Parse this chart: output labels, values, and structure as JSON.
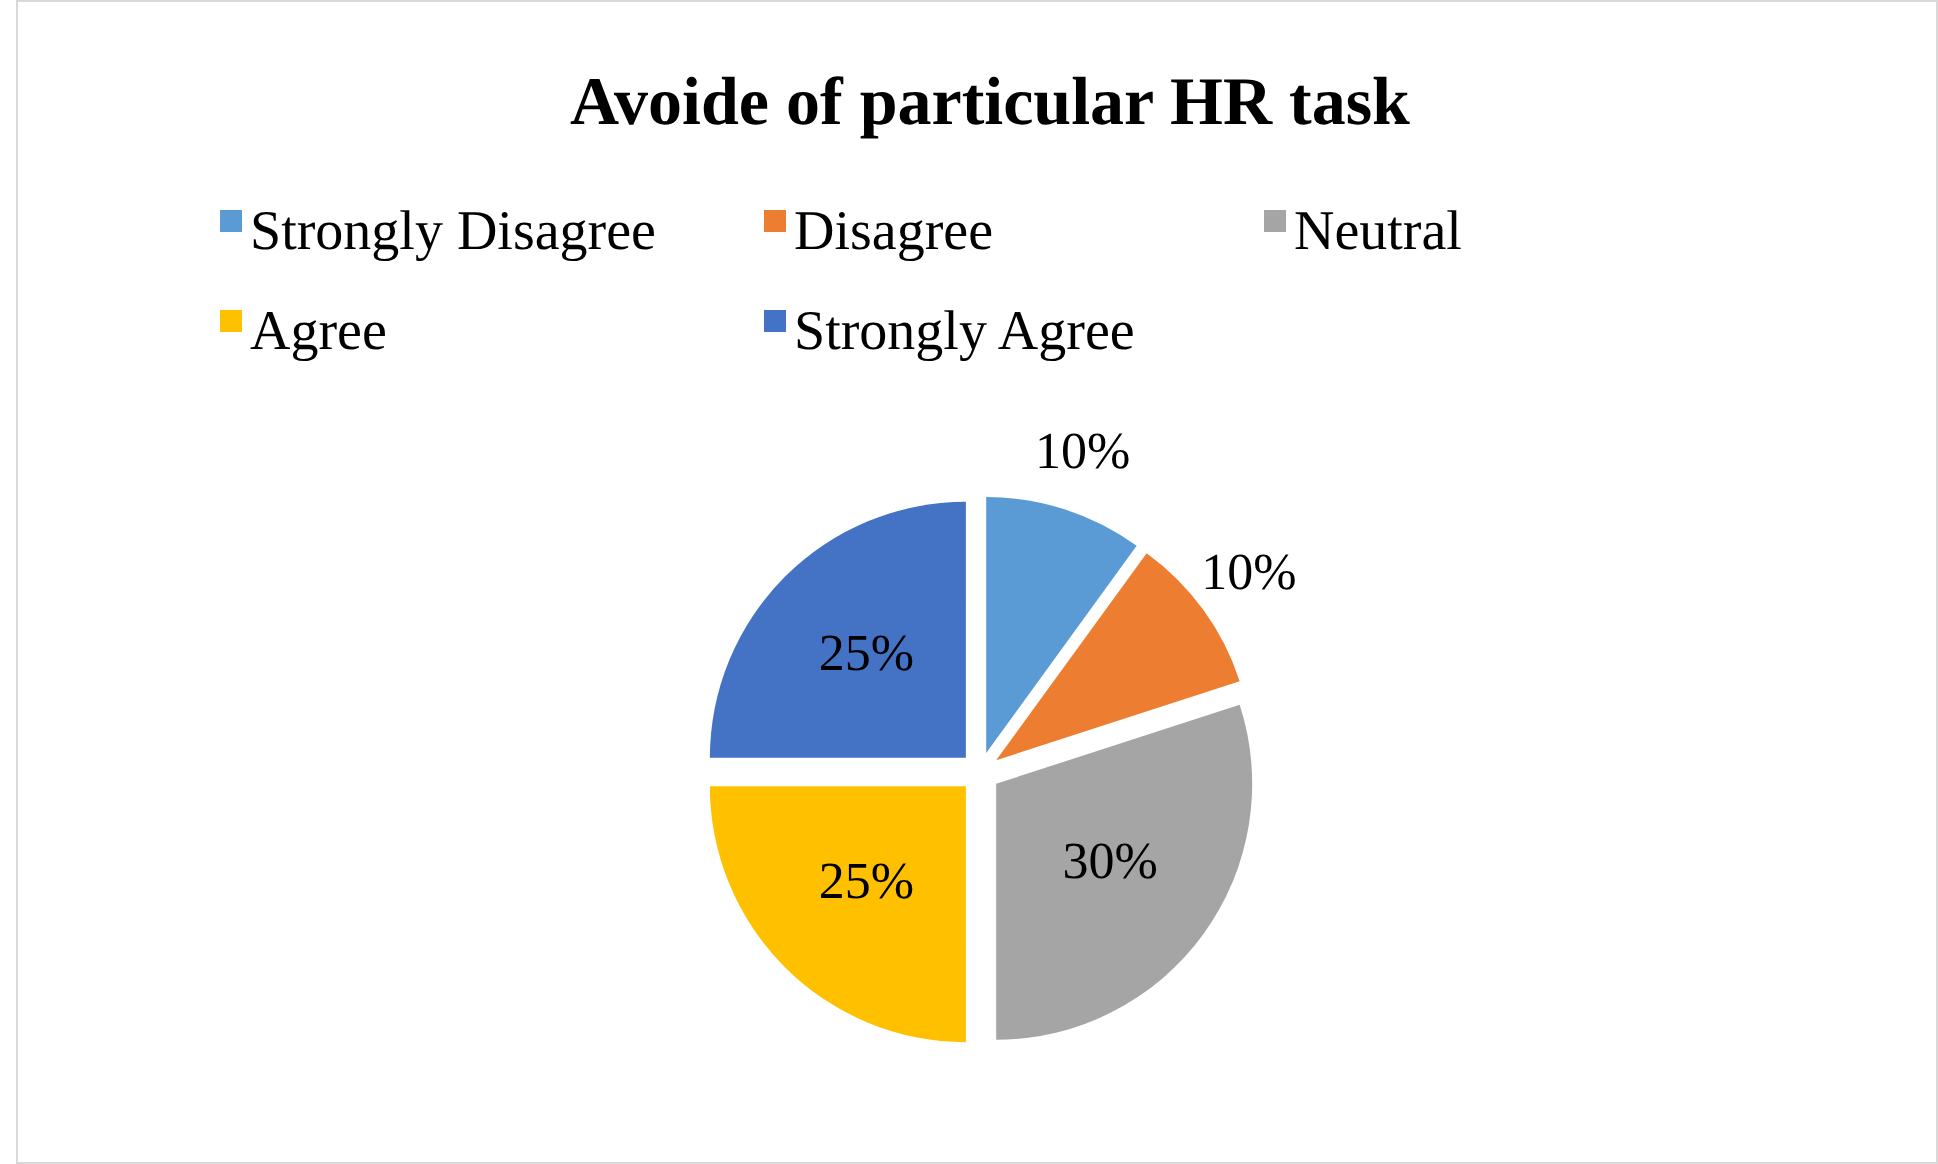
{
  "chart_data": {
    "type": "pie",
    "title": "Avoide of particular HR task",
    "categories": [
      "Strongly Disagree",
      "Disagree",
      "Neutral",
      "Agree",
      "Strongly Agree"
    ],
    "values": [
      10,
      10,
      30,
      25,
      25
    ],
    "colors": [
      "#5b9bd5",
      "#ed7d31",
      "#a5a5a5",
      "#ffc000",
      "#4472c4"
    ],
    "value_labels": [
      "10%",
      "10%",
      "30%",
      "25%",
      "25%"
    ],
    "legend": "top"
  }
}
